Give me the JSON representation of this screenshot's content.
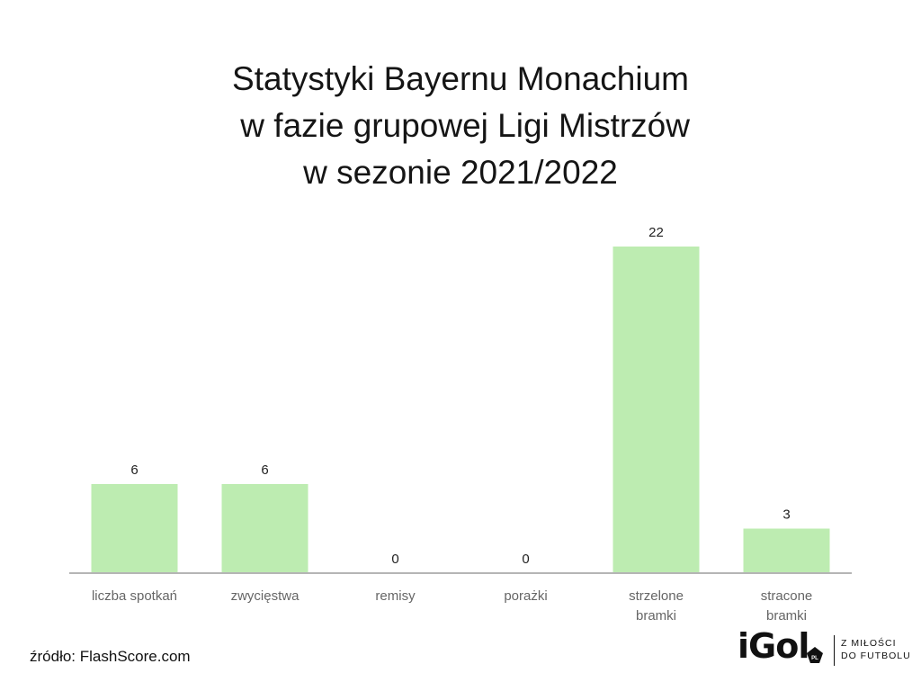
{
  "title_lines": [
    "Statystyki Bayernu Monachium",
    " w fazie grupowej Ligi Mistrzów",
    "w sezonie 2021/2022"
  ],
  "source": "źródło: FlashScore.com",
  "logo": {
    "wordmark": "iGol",
    "badge": "PL",
    "tagline_lines": [
      "Z MIŁOŚCI",
      "DO FUTBOLU"
    ]
  },
  "colors": {
    "bar": "#bdecb1",
    "axis": "#b5b5b5",
    "label": "#666666",
    "value": "#222222"
  },
  "chart_data": {
    "type": "bar",
    "title": "Statystyki Bayernu Monachium w fazie grupowej Ligi Mistrzów w sezonie 2021/2022",
    "categories": [
      [
        "liczba spotkań"
      ],
      [
        "zwycięstwa"
      ],
      [
        "remisy"
      ],
      [
        "porażki"
      ],
      [
        "strzelone",
        "bramki"
      ],
      [
        "stracone",
        "bramki"
      ]
    ],
    "values": [
      6,
      6,
      0,
      0,
      22,
      3
    ],
    "ylim": [
      0,
      22
    ],
    "grid": false,
    "legend": "none",
    "data_labels": true
  }
}
